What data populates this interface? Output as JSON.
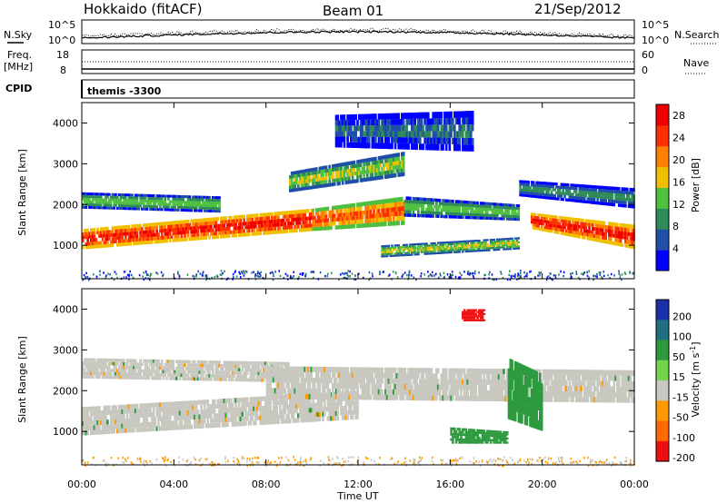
{
  "header": {
    "station": "Hokkaido (fitACF)",
    "beam": "Beam 01",
    "date": "21/Sep/2012"
  },
  "strip_panels": {
    "nsky_label": "N.Sky",
    "nsearch_label": "N.Search",
    "nsky_ticks": [
      "10^5",
      "10^0"
    ],
    "nsearch_ticks": [
      "10^5",
      "10^0"
    ],
    "freq_label": "Freq.",
    "freq_unit": "[MHz]",
    "freq_ticks": [
      "18",
      "8"
    ],
    "nave_label": "Nave",
    "nave_ticks": [
      "60",
      "0"
    ],
    "cpid_label": "CPID",
    "cpid_text": "themis -3300"
  },
  "colors": {
    "power_scale": [
      "#0000ff",
      "#1f4fa8",
      "#2f8b57",
      "#4fbf3f",
      "#f0c000",
      "#ff8000",
      "#ff3000",
      "#ee0000"
    ],
    "velocity_scale": [
      "#1a2fa8",
      "#1f6f80",
      "#2e9a3f",
      "#74d44a",
      "#c8c8c0",
      "#ff9a00",
      "#ff6a00",
      "#ee1010"
    ],
    "ground_scatter": "#c8c8c0"
  },
  "chart_data": [
    {
      "type": "heatmap",
      "title": "Power",
      "xlabel": "Time UT",
      "ylabel": "Slant Range [km]",
      "x_ticks": [
        "00:00",
        "04:00",
        "08:00",
        "12:00",
        "16:00",
        "20:00",
        "00:00"
      ],
      "y_ticks": [
        1000,
        2000,
        3000,
        4000
      ],
      "xlim_hours": [
        0,
        24
      ],
      "ylim_km": [
        180,
        4500
      ],
      "colorbar": {
        "label": "Power [dB]",
        "ticks": [
          4,
          8,
          12,
          16,
          20,
          24,
          28
        ],
        "range": [
          0,
          30
        ]
      },
      "bands": [
        {
          "t0": 0,
          "t1": 10,
          "r0": 900,
          "r1": 1400,
          "r0_end": 1350,
          "r1_end": 1900,
          "level": 28
        },
        {
          "t0": 10,
          "t1": 14,
          "r0": 1350,
          "r1": 1900,
          "r0_end": 1500,
          "r1_end": 2200,
          "level": 24
        },
        {
          "t0": 19.5,
          "t1": 24,
          "r0": 1400,
          "r1": 1800,
          "r0_end": 900,
          "r1_end": 1500,
          "level": 28
        },
        {
          "t0": 0,
          "t1": 6,
          "r0": 1900,
          "r1": 2300,
          "r0_end": 1800,
          "r1_end": 2200,
          "level": 14
        },
        {
          "t0": 9,
          "t1": 14,
          "r0": 2300,
          "r1": 2800,
          "r0_end": 2700,
          "r1_end": 3300,
          "level": 16
        },
        {
          "t0": 13,
          "t1": 19,
          "r0": 700,
          "r1": 1000,
          "r0_end": 900,
          "r1_end": 1200,
          "level": 16
        },
        {
          "t0": 14,
          "t1": 19,
          "r0": 1700,
          "r1": 2200,
          "r0_end": 1600,
          "r1_end": 2000,
          "level": 14
        },
        {
          "t0": 19,
          "t1": 24,
          "r0": 2200,
          "r1": 2600,
          "r0_end": 1900,
          "r1_end": 2400,
          "level": 10
        },
        {
          "t0": 11,
          "t1": 17,
          "r0": 3400,
          "r1": 4200,
          "r0_end": 3300,
          "r1_end": 4300,
          "level": 8
        }
      ]
    },
    {
      "type": "heatmap",
      "title": "Velocity",
      "xlabel": "Time UT",
      "ylabel": "Slant Range [km]",
      "x_ticks": [
        "00:00",
        "04:00",
        "08:00",
        "12:00",
        "16:00",
        "20:00",
        "00:00"
      ],
      "y_ticks": [
        1000,
        2000,
        3000,
        4000
      ],
      "xlim_hours": [
        0,
        24
      ],
      "ylim_km": [
        180,
        4500
      ],
      "colorbar": {
        "label": "Velocity [m s^-1]",
        "ticks": [
          "200",
          "100",
          "50",
          "15",
          "-15",
          "-50",
          "-100",
          "-200"
        ]
      },
      "bands": [
        {
          "t0": 0,
          "t1": 12,
          "r0": 900,
          "r1": 1600,
          "r0_end": 1300,
          "r1_end": 2000,
          "level": 0
        },
        {
          "t0": 0,
          "t1": 9,
          "r0": 2300,
          "r1": 2800,
          "r0_end": 2200,
          "r1_end": 2700,
          "level": 0
        },
        {
          "t0": 8,
          "t1": 24,
          "r0": 1800,
          "r1": 2600,
          "r0_end": 1700,
          "r1_end": 2500,
          "level": 0
        },
        {
          "t0": 16,
          "t1": 18.5,
          "r0": 700,
          "r1": 1100,
          "r0_end": 700,
          "r1_end": 1000,
          "level": 40
        },
        {
          "t0": 18.5,
          "t1": 20,
          "r0": 1300,
          "r1": 2800,
          "r0_end": 1000,
          "r1_end": 2400,
          "level": 40
        },
        {
          "t0": 16.5,
          "t1": 17.5,
          "r0": 3700,
          "r1": 4000,
          "r0_end": 3700,
          "r1_end": 4000,
          "level": -200
        }
      ]
    }
  ]
}
